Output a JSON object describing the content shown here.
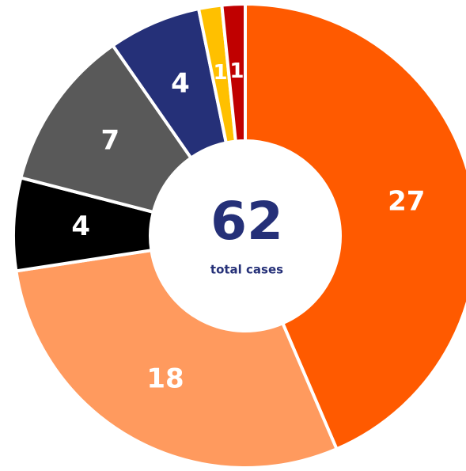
{
  "chart_data": {
    "type": "donut",
    "values": [
      27,
      18,
      4,
      7,
      4,
      1,
      1
    ],
    "colors": [
      "#ff5a00",
      "#ff9a5e",
      "#000000",
      "#595959",
      "#253078",
      "#ffc000",
      "#c00000"
    ],
    "center_value": 62,
    "center_label": "total cases"
  }
}
